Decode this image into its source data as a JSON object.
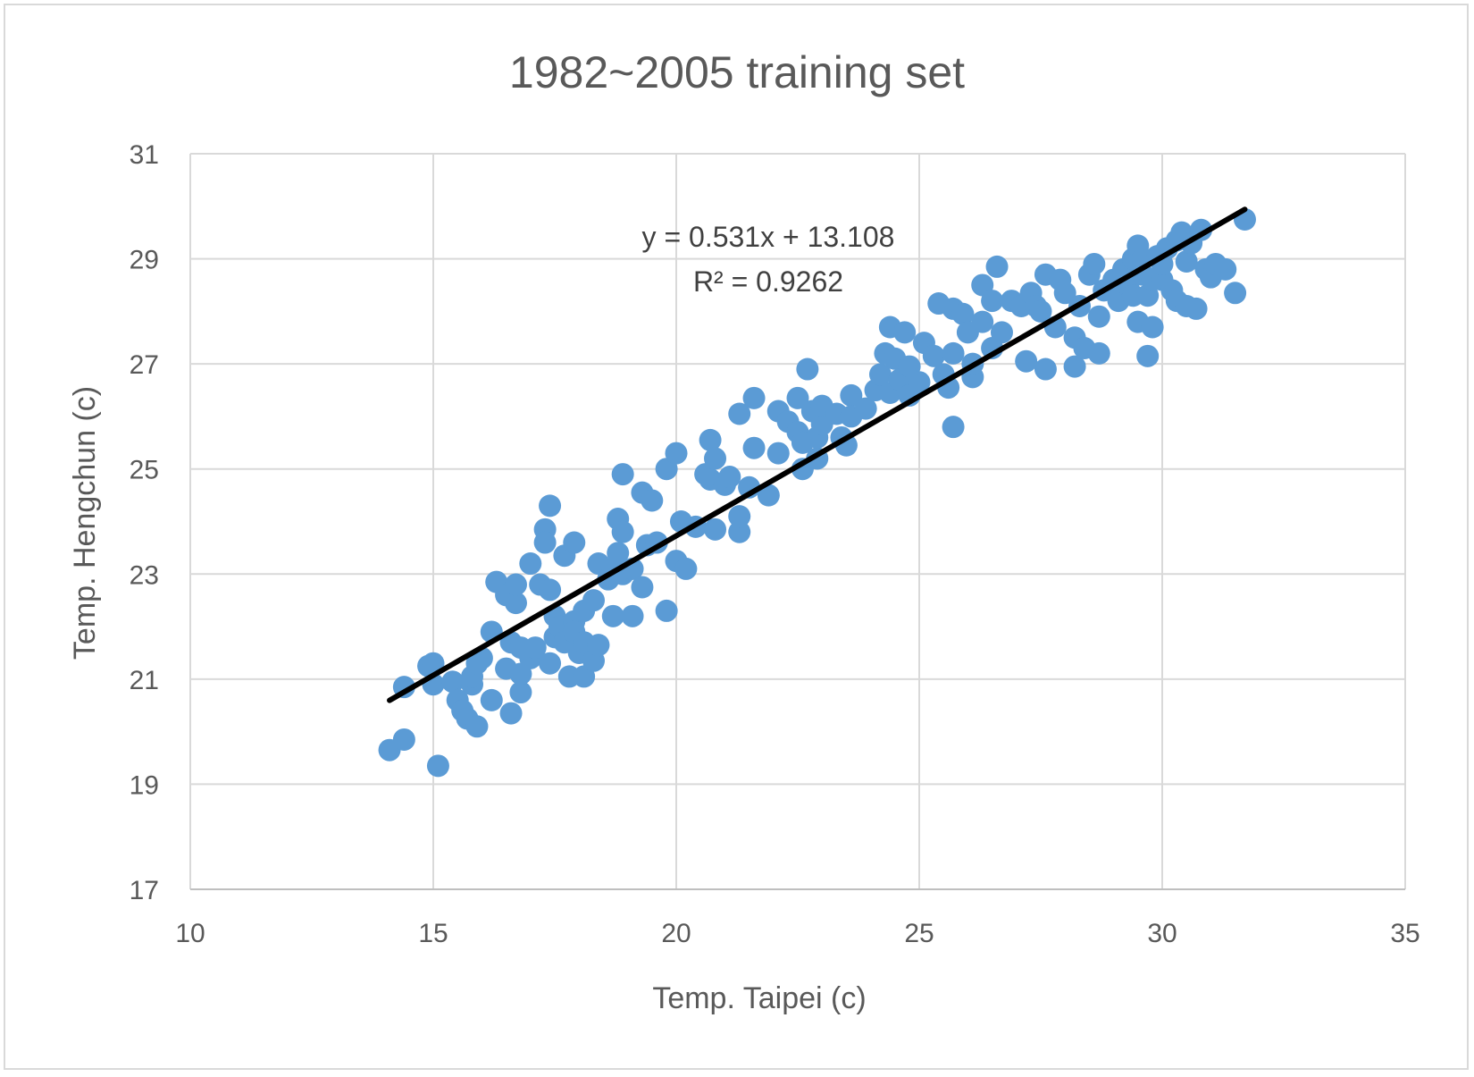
{
  "chart_data": {
    "type": "scatter",
    "title": "1982~2005 training set",
    "xlabel": "Temp. Taipei (c)",
    "ylabel": "Temp. Hengchun (c)",
    "xlim": [
      10,
      35
    ],
    "ylim": [
      17,
      31
    ],
    "xticks": [
      10,
      15,
      20,
      25,
      30,
      35
    ],
    "yticks": [
      17,
      19,
      21,
      23,
      25,
      27,
      29,
      31
    ],
    "grid": true,
    "legend": "none",
    "point_color": "#5b9bd5",
    "trendline": {
      "color": "#000000",
      "slope": 0.531,
      "intercept": 13.108,
      "x_range": [
        14.1,
        31.7
      ],
      "equation_label": "y = 0.531x + 13.108",
      "r2_label": "R² = 0.9262"
    },
    "series": [
      {
        "points": [
          [
            14.1,
            19.65
          ],
          [
            14.4,
            19.85
          ],
          [
            14.4,
            20.85
          ],
          [
            14.9,
            21.25
          ],
          [
            15.0,
            21.3
          ],
          [
            15.1,
            19.35
          ],
          [
            15.0,
            20.9
          ],
          [
            15.4,
            20.95
          ],
          [
            15.5,
            20.6
          ],
          [
            15.6,
            20.4
          ],
          [
            15.7,
            20.25
          ],
          [
            15.9,
            20.1
          ],
          [
            15.8,
            20.9
          ],
          [
            15.8,
            21.05
          ],
          [
            15.9,
            21.3
          ],
          [
            16.0,
            21.4
          ],
          [
            16.2,
            20.6
          ],
          [
            16.2,
            21.9
          ],
          [
            16.3,
            22.85
          ],
          [
            16.5,
            22.6
          ],
          [
            16.5,
            21.2
          ],
          [
            16.6,
            20.35
          ],
          [
            16.6,
            21.7
          ],
          [
            16.7,
            22.45
          ],
          [
            16.7,
            22.8
          ],
          [
            16.8,
            20.75
          ],
          [
            16.8,
            21.1
          ],
          [
            16.8,
            21.6
          ],
          [
            17.0,
            23.2
          ],
          [
            17.0,
            21.4
          ],
          [
            17.1,
            21.6
          ],
          [
            17.2,
            22.8
          ],
          [
            17.3,
            23.85
          ],
          [
            17.3,
            23.6
          ],
          [
            17.4,
            24.3
          ],
          [
            17.4,
            22.7
          ],
          [
            17.4,
            21.3
          ],
          [
            17.5,
            21.8
          ],
          [
            17.5,
            22.2
          ],
          [
            17.6,
            22.0
          ],
          [
            17.7,
            23.35
          ],
          [
            17.7,
            21.7
          ],
          [
            17.8,
            21.05
          ],
          [
            17.9,
            23.6
          ],
          [
            17.9,
            22.1
          ],
          [
            17.9,
            21.9
          ],
          [
            18.0,
            21.5
          ],
          [
            18.1,
            21.7
          ],
          [
            18.1,
            22.3
          ],
          [
            18.1,
            21.05
          ],
          [
            18.3,
            22.5
          ],
          [
            18.3,
            21.35
          ],
          [
            18.4,
            21.65
          ],
          [
            18.4,
            23.2
          ],
          [
            18.6,
            22.9
          ],
          [
            18.7,
            23.1
          ],
          [
            18.7,
            22.2
          ],
          [
            18.8,
            24.05
          ],
          [
            18.8,
            23.4
          ],
          [
            18.9,
            24.9
          ],
          [
            18.9,
            23.8
          ],
          [
            18.9,
            23.0
          ],
          [
            19.1,
            22.2
          ],
          [
            19.1,
            23.1
          ],
          [
            19.3,
            24.55
          ],
          [
            19.3,
            22.75
          ],
          [
            19.4,
            23.55
          ],
          [
            19.5,
            24.4
          ],
          [
            19.6,
            23.6
          ],
          [
            19.8,
            25.0
          ],
          [
            19.8,
            22.3
          ],
          [
            20.0,
            25.3
          ],
          [
            20.0,
            23.25
          ],
          [
            20.1,
            24.0
          ],
          [
            20.2,
            23.1
          ],
          [
            20.4,
            23.9
          ],
          [
            20.6,
            24.9
          ],
          [
            20.7,
            24.8
          ],
          [
            20.7,
            25.55
          ],
          [
            20.8,
            25.2
          ],
          [
            20.8,
            23.85
          ],
          [
            21.0,
            24.7
          ],
          [
            21.1,
            24.85
          ],
          [
            21.3,
            26.05
          ],
          [
            21.3,
            23.8
          ],
          [
            21.3,
            24.1
          ],
          [
            21.5,
            24.65
          ],
          [
            21.6,
            25.4
          ],
          [
            21.6,
            26.35
          ],
          [
            21.9,
            24.5
          ],
          [
            22.1,
            26.1
          ],
          [
            22.1,
            25.3
          ],
          [
            22.3,
            25.9
          ],
          [
            22.5,
            26.35
          ],
          [
            22.5,
            25.7
          ],
          [
            22.6,
            25.0
          ],
          [
            22.6,
            25.5
          ],
          [
            22.7,
            26.9
          ],
          [
            22.8,
            26.1
          ],
          [
            22.9,
            25.2
          ],
          [
            22.9,
            25.6
          ],
          [
            23.0,
            25.85
          ],
          [
            23.0,
            26.2
          ],
          [
            23.3,
            26.05
          ],
          [
            23.4,
            25.6
          ],
          [
            23.5,
            25.45
          ],
          [
            23.6,
            26.4
          ],
          [
            23.6,
            26.0
          ],
          [
            23.9,
            26.15
          ],
          [
            24.1,
            26.5
          ],
          [
            24.2,
            26.8
          ],
          [
            24.3,
            27.2
          ],
          [
            24.4,
            27.7
          ],
          [
            24.4,
            26.45
          ],
          [
            24.5,
            27.1
          ],
          [
            24.6,
            26.7
          ],
          [
            24.7,
            27.6
          ],
          [
            24.8,
            26.95
          ],
          [
            24.8,
            26.4
          ],
          [
            25.0,
            26.65
          ],
          [
            25.1,
            27.4
          ],
          [
            25.3,
            27.15
          ],
          [
            25.4,
            28.15
          ],
          [
            25.5,
            26.8
          ],
          [
            25.6,
            26.55
          ],
          [
            25.7,
            28.05
          ],
          [
            25.7,
            27.2
          ],
          [
            25.7,
            25.8
          ],
          [
            25.9,
            27.95
          ],
          [
            26.0,
            27.6
          ],
          [
            26.1,
            26.75
          ],
          [
            26.1,
            27.0
          ],
          [
            26.3,
            28.5
          ],
          [
            26.3,
            27.8
          ],
          [
            26.5,
            28.2
          ],
          [
            26.5,
            27.3
          ],
          [
            26.6,
            28.85
          ],
          [
            26.7,
            27.6
          ],
          [
            26.9,
            28.2
          ],
          [
            27.1,
            28.1
          ],
          [
            27.2,
            27.05
          ],
          [
            27.3,
            28.35
          ],
          [
            27.4,
            28.1
          ],
          [
            27.5,
            28.0
          ],
          [
            27.6,
            28.7
          ],
          [
            27.6,
            26.9
          ],
          [
            27.8,
            27.7
          ],
          [
            27.9,
            28.6
          ],
          [
            28.0,
            28.35
          ],
          [
            28.2,
            27.5
          ],
          [
            28.2,
            26.95
          ],
          [
            28.3,
            28.1
          ],
          [
            28.4,
            27.3
          ],
          [
            28.5,
            28.7
          ],
          [
            28.6,
            28.9
          ],
          [
            28.7,
            27.9
          ],
          [
            28.7,
            27.2
          ],
          [
            28.8,
            28.4
          ],
          [
            29.0,
            28.6
          ],
          [
            29.1,
            28.2
          ],
          [
            29.2,
            28.8
          ],
          [
            29.3,
            28.5
          ],
          [
            29.4,
            29.0
          ],
          [
            29.4,
            28.3
          ],
          [
            29.5,
            29.25
          ],
          [
            29.5,
            27.8
          ],
          [
            29.6,
            29.0
          ],
          [
            29.6,
            28.7
          ],
          [
            29.7,
            28.3
          ],
          [
            29.7,
            27.15
          ],
          [
            29.8,
            28.6
          ],
          [
            29.8,
            27.7
          ],
          [
            29.9,
            29.05
          ],
          [
            30.0,
            28.6
          ],
          [
            30.0,
            28.9
          ],
          [
            30.1,
            29.2
          ],
          [
            30.2,
            28.4
          ],
          [
            30.3,
            29.35
          ],
          [
            30.3,
            28.2
          ],
          [
            30.4,
            29.5
          ],
          [
            30.5,
            28.95
          ],
          [
            30.5,
            28.1
          ],
          [
            30.6,
            29.3
          ],
          [
            30.7,
            28.05
          ],
          [
            30.8,
            29.55
          ],
          [
            30.9,
            28.8
          ],
          [
            31.0,
            28.65
          ],
          [
            31.1,
            28.9
          ],
          [
            31.3,
            28.8
          ],
          [
            31.5,
            28.35
          ],
          [
            31.7,
            29.75
          ]
        ]
      }
    ]
  }
}
